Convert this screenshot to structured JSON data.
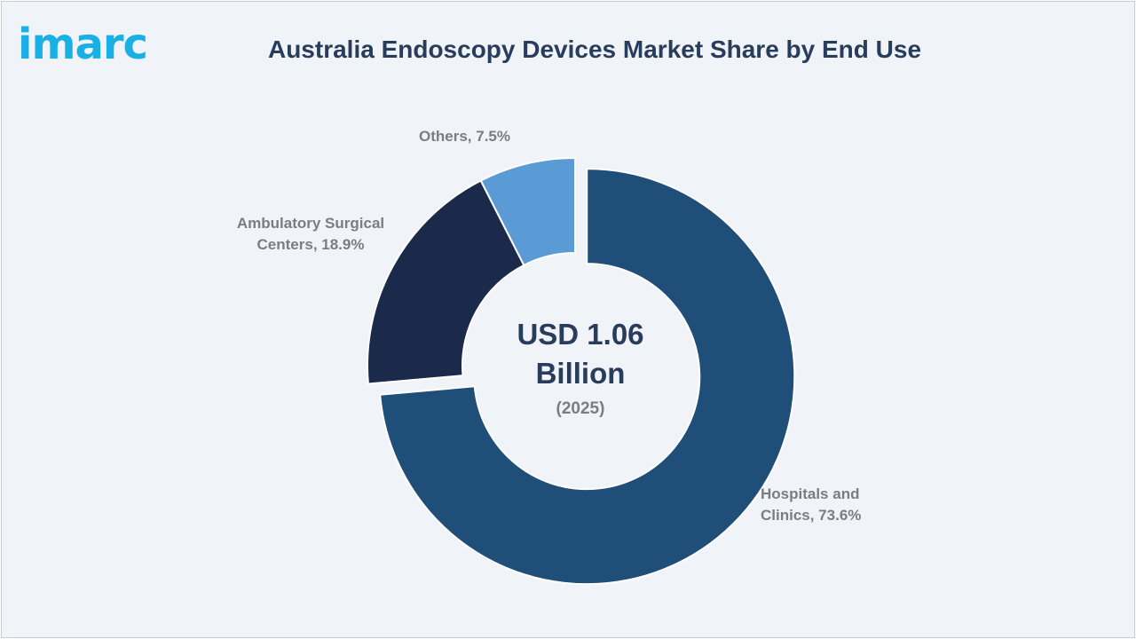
{
  "logo": {
    "text": "imarc"
  },
  "chart_data": {
    "type": "pie",
    "variant": "donut",
    "title": "Australia Endoscopy Devices Market Share by End Use",
    "center_value": "USD 1.06 Billion",
    "center_value_line1": "USD 1.06",
    "center_value_line2": "Billion",
    "center_year": "(2025)",
    "slices": [
      {
        "label_line1": "Hospitals and",
        "label_line2": "Clinics, 73.6%",
        "name": "Hospitals and Clinics",
        "value": 73.6,
        "color": "#1f4e79",
        "exploded": true
      },
      {
        "label_line1": "Ambulatory Surgical",
        "label_line2": "Centers, 18.9%",
        "name": "Ambulatory Surgical Centers",
        "value": 18.9,
        "color": "#1b2a4a",
        "exploded": false
      },
      {
        "label_line1": "Others, 7.5%",
        "label_line2": "",
        "name": "Others",
        "value": 7.5,
        "color": "#5b9bd5",
        "exploded": false
      }
    ]
  }
}
